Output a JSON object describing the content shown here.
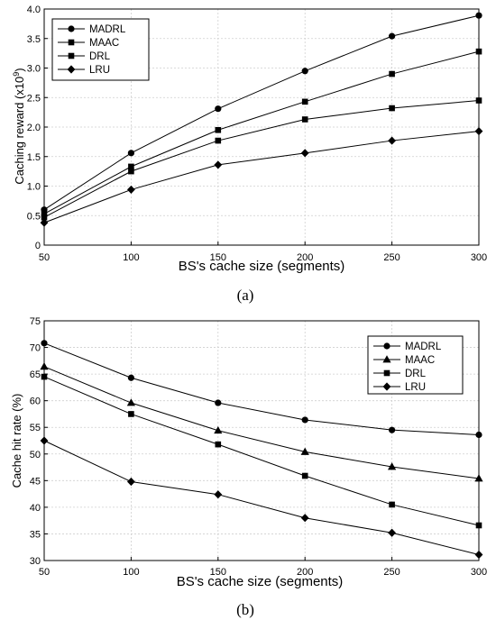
{
  "chart_data": [
    {
      "type": "line",
      "caption": "(a)",
      "xlabel": "BS's cache size (segments)",
      "ylabel": "Caching reward (x10^9)",
      "ylabel_base": "Caching reward (x10",
      "ylabel_exp": "9",
      "ylabel_tail": ")",
      "x": [
        50,
        100,
        150,
        200,
        250,
        300
      ],
      "xlim": [
        50,
        300
      ],
      "ylim": [
        0,
        4
      ],
      "xticks": [
        "50",
        "100",
        "150",
        "200",
        "250",
        "300"
      ],
      "yticks": [
        "0",
        "0.5",
        "1.0",
        "1.5",
        "2.0",
        "2.5",
        "3.0",
        "3.5",
        "4.0"
      ],
      "grid": true,
      "legend_position": "top-left",
      "series": [
        {
          "name": "MADRL",
          "marker": "circle",
          "values": [
            0.6,
            1.56,
            2.31,
            2.95,
            3.54,
            3.89
          ]
        },
        {
          "name": "MAAC",
          "marker": "square",
          "values": [
            0.53,
            1.33,
            1.95,
            2.43,
            2.9,
            3.28
          ]
        },
        {
          "name": "DRL",
          "marker": "square",
          "values": [
            0.47,
            1.25,
            1.77,
            2.13,
            2.32,
            2.45
          ]
        },
        {
          "name": "LRU",
          "marker": "diamond",
          "values": [
            0.38,
            0.94,
            1.36,
            1.56,
            1.77,
            1.93
          ]
        }
      ]
    },
    {
      "type": "line",
      "caption": "(b)",
      "xlabel": "BS's cache size (segments)",
      "ylabel": "Cache hit rate (%)",
      "x": [
        50,
        100,
        150,
        200,
        250,
        300
      ],
      "xlim": [
        50,
        300
      ],
      "ylim": [
        30,
        75
      ],
      "xticks": [
        "50",
        "100",
        "150",
        "200",
        "250",
        "300"
      ],
      "yticks": [
        "30",
        "35",
        "40",
        "45",
        "50",
        "55",
        "60",
        "65",
        "70",
        "75"
      ],
      "grid": true,
      "legend_position": "top-right",
      "series": [
        {
          "name": "MADRL",
          "marker": "circle",
          "values": [
            70.8,
            64.3,
            59.6,
            56.4,
            54.5,
            53.6
          ]
        },
        {
          "name": "MAAC",
          "marker": "triangle",
          "values": [
            66.4,
            59.6,
            54.4,
            50.4,
            47.6,
            45.4
          ]
        },
        {
          "name": "DRL",
          "marker": "square",
          "values": [
            64.5,
            57.5,
            51.8,
            45.9,
            40.5,
            36.6
          ]
        },
        {
          "name": "LRU",
          "marker": "diamond",
          "values": [
            52.5,
            44.8,
            42.4,
            38.0,
            35.2,
            31.1
          ]
        }
      ]
    }
  ]
}
